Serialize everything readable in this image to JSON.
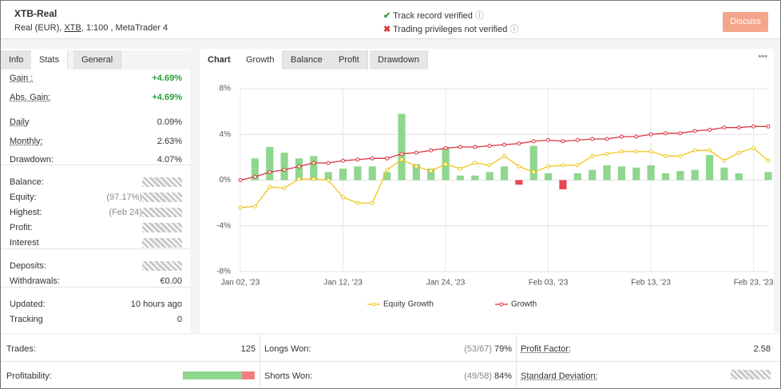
{
  "header": {
    "title": "XTB-Real",
    "account_pre": "Real (EUR), ",
    "broker": "XTB",
    "account_post": ", 1:100 , MetaTrader 4",
    "verified": "Track record verified",
    "not_verified": "Trading privileges not verified",
    "button": "Discuss"
  },
  "left_tabs": [
    "Info",
    "Stats",
    "General"
  ],
  "stats": [
    [
      "Gain :",
      "+4.69%"
    ],
    [
      "Abs. Gain:",
      "+4.69%"
    ],
    [
      "Daily",
      "0.09%"
    ],
    [
      "Monthly:",
      "2.63%"
    ],
    [
      "Drawdown:",
      "4.07%"
    ],
    [
      "Balance:",
      null
    ],
    [
      "Equity:",
      "(97.17%)"
    ],
    [
      "Highest:",
      "(Feb 24)"
    ],
    [
      "Profit:",
      null
    ],
    [
      "Interest",
      null
    ],
    [
      "Deposits:",
      null
    ],
    [
      "Withdrawals:",
      "€0.00"
    ],
    [
      "Updated:",
      "10 hours ago"
    ],
    [
      "Tracking",
      "0"
    ]
  ],
  "chart_tabs": [
    "Chart",
    "Growth",
    "Balance",
    "Profit",
    "Drawdown"
  ],
  "chart": {
    "type": "line",
    "categories": [
      "Jan 02, '23",
      null,
      null,
      null,
      null,
      null,
      null,
      "Jan 12, '23",
      null,
      null,
      null,
      null,
      null,
      null,
      "Jan 24, '23",
      null,
      null,
      null,
      null,
      null,
      null,
      "Feb 03, '23",
      null,
      null,
      null,
      null,
      null,
      null,
      "Feb 13, '23",
      null,
      null,
      null,
      null,
      null,
      null,
      "Feb 23, '23",
      null
    ],
    "series": [
      {
        "name": "Equity Growth",
        "color": "#f0c419",
        "values": [
          -2.4,
          -2.3,
          -0.6,
          -0.7,
          0.1,
          0.1,
          0,
          -1.5,
          -2.0,
          -2.0,
          0.9,
          1.8,
          1.2,
          0.8,
          1.4,
          1.0,
          1.5,
          1.3,
          2.1,
          1.2,
          0.7,
          1.2,
          1.3,
          1.3,
          2.1,
          2.3,
          2.5,
          2.5,
          2.5,
          2.1,
          2.1,
          2.6,
          2.6,
          1.7,
          2.4,
          2.8,
          1.7
        ]
      },
      {
        "name": "Growth",
        "color": "#d9363e",
        "values": [
          0.0,
          0.3,
          0.7,
          0.9,
          1.2,
          1.5,
          1.5,
          1.7,
          1.8,
          1.9,
          1.9,
          2.3,
          2.4,
          2.6,
          2.8,
          2.9,
          2.9,
          3.0,
          3.1,
          3.2,
          3.4,
          3.5,
          3.4,
          3.5,
          3.6,
          3.6,
          3.8,
          3.8,
          4.0,
          4.1,
          4.1,
          4.3,
          4.4,
          4.6,
          4.6,
          4.7,
          4.69
        ]
      }
    ],
    "bars": {
      "positive_color": "#8fd68f",
      "negative_color": "#e8474f",
      "values": [
        null,
        1.9,
        2.9,
        2.4,
        1.9,
        2.1,
        0.7,
        1.0,
        1.2,
        1.2,
        0.7,
        5.8,
        1.4,
        1.0,
        2.8,
        0.4,
        0.4,
        0.7,
        1.2,
        -0.4,
        3.0,
        0.6,
        -0.8,
        0.6,
        0.9,
        1.3,
        1.2,
        1.1,
        1.3,
        0.6,
        0.8,
        0.9,
        2.2,
        1.1,
        0.6,
        null,
        0.7
      ]
    },
    "ylim": [
      -8,
      8
    ],
    "yticks": [
      {
        "value": 8,
        "label": "8%"
      },
      {
        "value": 4,
        "label": "4%"
      },
      {
        "value": 0,
        "label": "0%"
      },
      {
        "value": -4,
        "label": "-4%"
      },
      {
        "value": -8,
        "label": "-8%"
      }
    ],
    "grid": true
  },
  "bottom": {
    "trades": [
      "Trades:",
      "125"
    ],
    "profitability": "Profitability:",
    "longs": [
      "Longs Won:",
      "(53/67)",
      "79%"
    ],
    "shorts": [
      "Shorts Won:",
      "(49/58)",
      "84%"
    ],
    "profit_factor": [
      "Profit Factor:",
      "2.58"
    ],
    "std": "Standard Deviation:"
  }
}
